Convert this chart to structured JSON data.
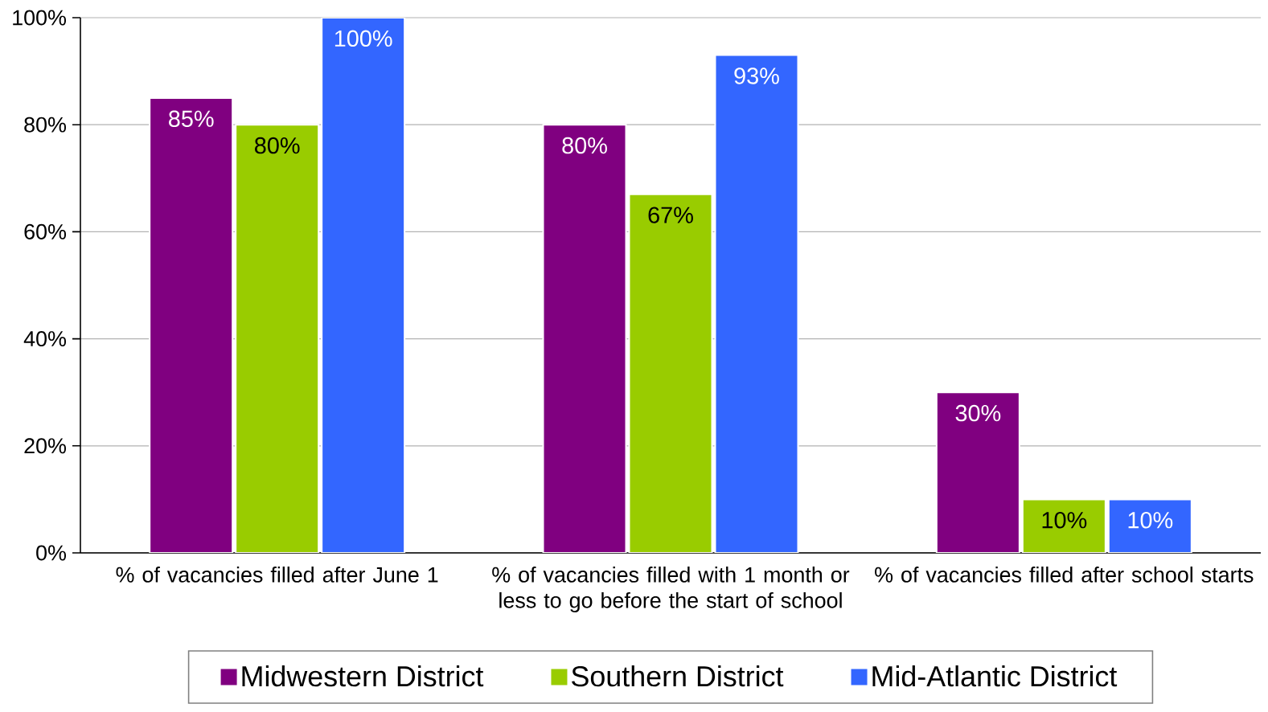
{
  "chart_data": {
    "type": "bar",
    "categories": [
      "% of vacancies filled after June 1",
      "% of vacancies filled with 1 month or less to go before the start of school",
      "% of vacancies filled after school starts"
    ],
    "series": [
      {
        "name": "Midwestern District",
        "color": "#800080",
        "values": [
          85,
          80,
          30
        ],
        "value_labels": [
          "85%",
          "80%",
          "30%"
        ]
      },
      {
        "name": "Southern District",
        "color": "#99cc00",
        "values": [
          80,
          67,
          10
        ],
        "value_labels": [
          "80%",
          "67%",
          "10%"
        ]
      },
      {
        "name": "Mid-Atlantic District",
        "color": "#3366ff",
        "values": [
          100,
          93,
          10
        ],
        "value_labels": [
          "100%",
          "93%",
          "10%"
        ]
      }
    ],
    "ylim": [
      0,
      100
    ],
    "yticks": [
      {
        "value": 0,
        "label": "0%"
      },
      {
        "value": 20,
        "label": "20%"
      },
      {
        "value": 40,
        "label": "40%"
      },
      {
        "value": 60,
        "label": "60%"
      },
      {
        "value": 80,
        "label": "80%"
      },
      {
        "value": 100,
        "label": "100%"
      }
    ],
    "grid": "y",
    "legend": "bottom"
  }
}
